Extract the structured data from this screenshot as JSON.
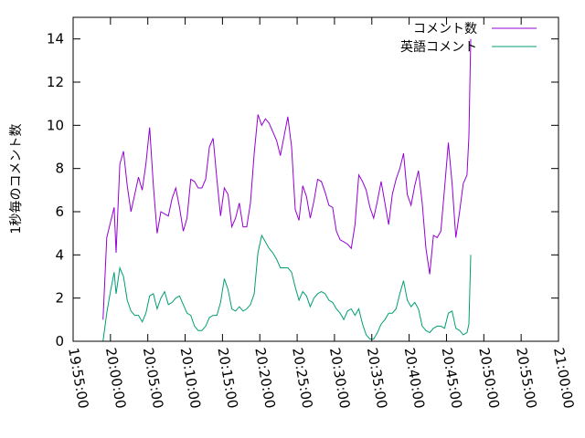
{
  "chart_data": {
    "type": "line",
    "ylabel": "1秒毎のコメント数",
    "xlabel": "",
    "ylim": [
      0,
      15
    ],
    "yticks": [
      "0",
      "2",
      "4",
      "6",
      "8",
      "10",
      "12",
      "14"
    ],
    "xlim": [
      "19:55:00",
      "21:00:00"
    ],
    "xticks": [
      "19:55:00",
      "20:00:00",
      "20:05:00",
      "20:10:00",
      "20:15:00",
      "20:20:00",
      "20:25:00",
      "20:30:00",
      "20:35:00",
      "20:40:00",
      "20:45:00",
      "20:50:00",
      "20:55:00",
      "21:00:00"
    ],
    "grid": false,
    "legend_position": "top-right",
    "series": [
      {
        "name": "コメント数",
        "color": "#9400d3",
        "points": [
          [
            "19:59:00",
            1.0
          ],
          [
            "19:59:30",
            4.8
          ],
          [
            "20:00:00",
            5.5
          ],
          [
            "20:00:30",
            6.2
          ],
          [
            "20:00:45",
            4.1
          ],
          [
            "20:01:15",
            8.2
          ],
          [
            "20:01:45",
            8.8
          ],
          [
            "20:02:15",
            7.2
          ],
          [
            "20:02:45",
            6.0
          ],
          [
            "20:03:15",
            6.8
          ],
          [
            "20:03:45",
            7.6
          ],
          [
            "20:04:15",
            7.0
          ],
          [
            "20:04:45",
            8.2
          ],
          [
            "20:05:15",
            9.9
          ],
          [
            "20:05:45",
            7.2
          ],
          [
            "20:06:15",
            5.0
          ],
          [
            "20:06:45",
            6.0
          ],
          [
            "20:07:15",
            5.9
          ],
          [
            "20:07:45",
            5.8
          ],
          [
            "20:08:15",
            6.6
          ],
          [
            "20:08:45",
            7.1
          ],
          [
            "20:09:15",
            6.2
          ],
          [
            "20:09:45",
            5.1
          ],
          [
            "20:10:15",
            5.7
          ],
          [
            "20:10:45",
            7.5
          ],
          [
            "20:11:15",
            7.4
          ],
          [
            "20:11:45",
            7.1
          ],
          [
            "20:12:15",
            7.1
          ],
          [
            "20:12:45",
            7.5
          ],
          [
            "20:13:15",
            9.0
          ],
          [
            "20:13:45",
            9.4
          ],
          [
            "20:14:15",
            7.5
          ],
          [
            "20:14:45",
            5.8
          ],
          [
            "20:15:15",
            7.1
          ],
          [
            "20:15:45",
            6.8
          ],
          [
            "20:16:15",
            5.3
          ],
          [
            "20:16:45",
            5.7
          ],
          [
            "20:17:15",
            6.4
          ],
          [
            "20:17:45",
            5.3
          ],
          [
            "20:18:15",
            5.3
          ],
          [
            "20:18:45",
            6.4
          ],
          [
            "20:19:15",
            8.7
          ],
          [
            "20:19:45",
            10.5
          ],
          [
            "20:20:15",
            10.0
          ],
          [
            "20:20:45",
            10.3
          ],
          [
            "20:21:15",
            10.1
          ],
          [
            "20:21:45",
            9.7
          ],
          [
            "20:22:15",
            9.3
          ],
          [
            "20:22:45",
            8.6
          ],
          [
            "20:23:15",
            9.5
          ],
          [
            "20:23:45",
            10.4
          ],
          [
            "20:24:15",
            9.0
          ],
          [
            "20:24:45",
            6.1
          ],
          [
            "20:25:15",
            5.6
          ],
          [
            "20:25:45",
            7.2
          ],
          [
            "20:26:15",
            6.7
          ],
          [
            "20:26:45",
            5.7
          ],
          [
            "20:27:15",
            6.5
          ],
          [
            "20:27:45",
            7.5
          ],
          [
            "20:28:15",
            7.4
          ],
          [
            "20:28:45",
            6.9
          ],
          [
            "20:29:15",
            6.3
          ],
          [
            "20:29:45",
            6.2
          ],
          [
            "20:30:15",
            5.1
          ],
          [
            "20:30:45",
            4.7
          ],
          [
            "20:31:15",
            4.6
          ],
          [
            "20:31:45",
            4.5
          ],
          [
            "20:32:15",
            4.3
          ],
          [
            "20:32:45",
            5.4
          ],
          [
            "20:33:15",
            7.7
          ],
          [
            "20:33:45",
            7.4
          ],
          [
            "20:34:15",
            7.0
          ],
          [
            "20:34:45",
            6.2
          ],
          [
            "20:35:15",
            5.7
          ],
          [
            "20:35:45",
            6.5
          ],
          [
            "20:36:15",
            7.4
          ],
          [
            "20:36:45",
            6.4
          ],
          [
            "20:37:15",
            5.4
          ],
          [
            "20:37:45",
            6.8
          ],
          [
            "20:38:15",
            7.5
          ],
          [
            "20:38:45",
            8.0
          ],
          [
            "20:39:15",
            8.7
          ],
          [
            "20:39:45",
            6.8
          ],
          [
            "20:40:15",
            6.3
          ],
          [
            "20:40:45",
            7.2
          ],
          [
            "20:41:15",
            7.9
          ],
          [
            "20:41:45",
            6.4
          ],
          [
            "20:42:15",
            4.3
          ],
          [
            "20:42:45",
            3.1
          ],
          [
            "20:43:15",
            4.9
          ],
          [
            "20:43:45",
            4.8
          ],
          [
            "20:44:15",
            5.1
          ],
          [
            "20:44:45",
            7.1
          ],
          [
            "20:45:15",
            9.2
          ],
          [
            "20:45:45",
            7.3
          ],
          [
            "20:46:15",
            4.8
          ],
          [
            "20:46:45",
            6.0
          ],
          [
            "20:47:15",
            7.3
          ],
          [
            "20:47:45",
            7.7
          ],
          [
            "20:48:00",
            9.5
          ],
          [
            "20:48:15",
            14.0
          ]
        ]
      },
      {
        "name": "英語コメント",
        "color": "#009e73",
        "points": [
          [
            "19:59:00",
            0.0
          ],
          [
            "19:59:30",
            1.3
          ],
          [
            "20:00:00",
            2.3
          ],
          [
            "20:00:30",
            3.2
          ],
          [
            "20:00:45",
            2.2
          ],
          [
            "20:01:15",
            3.4
          ],
          [
            "20:01:45",
            3.0
          ],
          [
            "20:02:15",
            1.9
          ],
          [
            "20:02:45",
            1.4
          ],
          [
            "20:03:15",
            1.2
          ],
          [
            "20:03:45",
            1.2
          ],
          [
            "20:04:15",
            0.9
          ],
          [
            "20:04:45",
            1.3
          ],
          [
            "20:05:15",
            2.1
          ],
          [
            "20:05:45",
            2.2
          ],
          [
            "20:06:15",
            1.5
          ],
          [
            "20:06:45",
            2.0
          ],
          [
            "20:07:15",
            2.3
          ],
          [
            "20:07:45",
            1.7
          ],
          [
            "20:08:15",
            1.8
          ],
          [
            "20:08:45",
            2.0
          ],
          [
            "20:09:15",
            2.1
          ],
          [
            "20:09:45",
            1.7
          ],
          [
            "20:10:15",
            1.3
          ],
          [
            "20:10:45",
            1.2
          ],
          [
            "20:11:15",
            0.7
          ],
          [
            "20:11:45",
            0.5
          ],
          [
            "20:12:15",
            0.5
          ],
          [
            "20:12:45",
            0.7
          ],
          [
            "20:13:15",
            1.1
          ],
          [
            "20:13:45",
            1.2
          ],
          [
            "20:14:15",
            1.2
          ],
          [
            "20:14:45",
            1.8
          ],
          [
            "20:15:15",
            2.9
          ],
          [
            "20:15:45",
            2.4
          ],
          [
            "20:16:15",
            1.5
          ],
          [
            "20:16:45",
            1.4
          ],
          [
            "20:17:15",
            1.6
          ],
          [
            "20:17:45",
            1.4
          ],
          [
            "20:18:15",
            1.5
          ],
          [
            "20:18:45",
            1.7
          ],
          [
            "20:19:15",
            2.2
          ],
          [
            "20:19:45",
            4.1
          ],
          [
            "20:20:15",
            4.9
          ],
          [
            "20:20:45",
            4.6
          ],
          [
            "20:21:15",
            4.3
          ],
          [
            "20:21:45",
            4.1
          ],
          [
            "20:22:15",
            3.8
          ],
          [
            "20:22:45",
            3.4
          ],
          [
            "20:23:15",
            3.4
          ],
          [
            "20:23:45",
            3.4
          ],
          [
            "20:24:15",
            3.2
          ],
          [
            "20:24:45",
            2.5
          ],
          [
            "20:25:15",
            1.9
          ],
          [
            "20:25:45",
            2.3
          ],
          [
            "20:26:15",
            2.1
          ],
          [
            "20:26:45",
            1.6
          ],
          [
            "20:27:15",
            2.0
          ],
          [
            "20:27:45",
            2.2
          ],
          [
            "20:28:15",
            2.3
          ],
          [
            "20:28:45",
            2.2
          ],
          [
            "20:29:15",
            1.9
          ],
          [
            "20:29:45",
            1.8
          ],
          [
            "20:30:15",
            1.5
          ],
          [
            "20:30:45",
            1.3
          ],
          [
            "20:31:15",
            1.0
          ],
          [
            "20:31:45",
            1.4
          ],
          [
            "20:32:15",
            1.5
          ],
          [
            "20:32:45",
            1.2
          ],
          [
            "20:33:15",
            1.5
          ],
          [
            "20:33:45",
            0.8
          ],
          [
            "20:34:15",
            0.3
          ],
          [
            "20:34:45",
            0.1
          ],
          [
            "20:35:15",
            0.1
          ],
          [
            "20:35:45",
            0.4
          ],
          [
            "20:36:15",
            0.8
          ],
          [
            "20:36:45",
            1.0
          ],
          [
            "20:37:15",
            1.3
          ],
          [
            "20:37:45",
            1.3
          ],
          [
            "20:38:15",
            1.5
          ],
          [
            "20:38:45",
            2.2
          ],
          [
            "20:39:15",
            2.8
          ],
          [
            "20:39:45",
            1.9
          ],
          [
            "20:40:15",
            1.6
          ],
          [
            "20:40:45",
            1.8
          ],
          [
            "20:41:15",
            1.5
          ],
          [
            "20:41:45",
            0.7
          ],
          [
            "20:42:15",
            0.5
          ],
          [
            "20:42:45",
            0.4
          ],
          [
            "20:43:15",
            0.6
          ],
          [
            "20:43:45",
            0.7
          ],
          [
            "20:44:15",
            0.7
          ],
          [
            "20:44:45",
            0.6
          ],
          [
            "20:45:15",
            1.3
          ],
          [
            "20:45:45",
            1.4
          ],
          [
            "20:46:15",
            0.6
          ],
          [
            "20:46:45",
            0.5
          ],
          [
            "20:47:15",
            0.3
          ],
          [
            "20:47:45",
            0.4
          ],
          [
            "20:48:00",
            0.8
          ],
          [
            "20:48:15",
            4.0
          ]
        ]
      }
    ]
  }
}
